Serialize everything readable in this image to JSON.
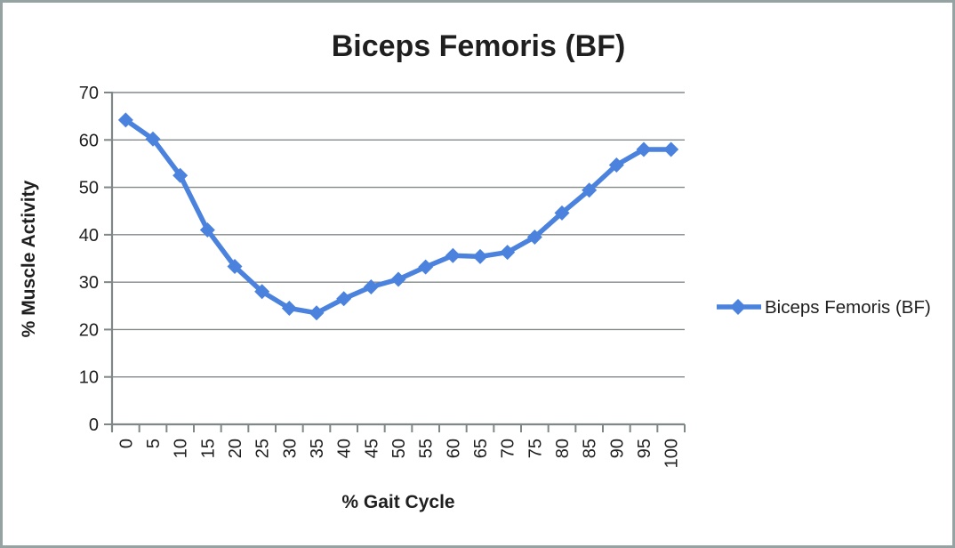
{
  "chart_data": {
    "type": "line",
    "title": "Biceps Femoris (BF)",
    "xlabel": "% Gait Cycle",
    "ylabel": "% Muscle Activity",
    "categories": [
      "0",
      "5",
      "10",
      "15",
      "20",
      "25",
      "30",
      "35",
      "40",
      "45",
      "50",
      "55",
      "60",
      "65",
      "70",
      "75",
      "80",
      "85",
      "90",
      "95",
      "100"
    ],
    "series": [
      {
        "name": "Biceps Femoris (BF)",
        "color": "#4a82de",
        "marker": "diamond",
        "values": [
          64.2,
          60.2,
          52.5,
          41,
          33.3,
          28,
          24.5,
          23.5,
          26.5,
          29,
          30.6,
          33.2,
          35.6,
          35.4,
          36.3,
          39.5,
          44.6,
          49.4,
          54.7,
          58,
          58
        ]
      }
    ],
    "ylim": [
      0,
      70
    ],
    "y_ticks": [
      0,
      10,
      20,
      30,
      40,
      50,
      60,
      70
    ],
    "x_tick_step": 5,
    "grid": "horizontal",
    "legend_position": "right"
  }
}
